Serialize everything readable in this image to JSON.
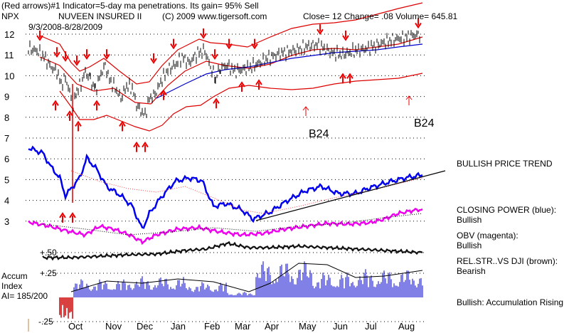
{
  "header": {
    "indicator_text": "(Red arrows)#1 Indicator=5-day ma penetrations. Its gain= 95% Sell",
    "ticker": "NPX",
    "fund_name": "NUVEEN INSURED II",
    "copyright": "(C) 2009 www.tigersoft.com",
    "close_text": "Close=  12  Change= .08 Volume= 645.81",
    "date_range": "9/3/2008-8/28/2009"
  },
  "annotations": {
    "b24_first": "B24",
    "b24_second": "B24",
    "trend_label": "BULLISH PRICE TREND",
    "closing_power_label": "CLOSING POWER (blue):",
    "closing_power_value": "Bullish",
    "obv_label": "OBV (magenta):",
    "obv_value": "Bullish",
    "relstr_label": "REL.STR..VS DJI (brown):",
    "relstr_value": "Bearish",
    "accum_summary": "Bullish: Accumulation Rising",
    "accum_title_1": "Accum",
    "accum_title_2": "Index",
    "accum_ai": "AI= 185/200"
  },
  "colors": {
    "price_bars": "#000000",
    "bands": "#dd0000",
    "ma_blue": "#0000cc",
    "closing_power": "#0000ee",
    "obv": "#ee00ee",
    "rel_strength": "#111111",
    "accum_bars": "#0000cc",
    "accum_negative": "#cc0000",
    "arrows": "#ee0000"
  },
  "chart_data": {
    "type": "line",
    "title": "NUVEEN INSURED II",
    "ylabel": "NPX",
    "x_ticks": [
      "Oct",
      "Nov",
      "Dec",
      "Jan",
      "Feb",
      "Mar",
      "Apr",
      "May",
      "Jun",
      "Jul",
      "Aug"
    ],
    "y_ticks": [
      "12",
      "11",
      "10",
      "9",
      "8",
      "7",
      "6",
      "5",
      "4",
      "3"
    ],
    "ylim": [
      2.5,
      12.5
    ],
    "accum_ticks": [
      "+.50",
      "+.25",
      "-.25"
    ],
    "accum_ylim": [
      -0.3,
      0.55
    ],
    "price": [
      {
        "x": 40,
        "y": 11.3
      },
      {
        "x": 52,
        "y": 11.2
      },
      {
        "x": 62,
        "y": 10.9
      },
      {
        "x": 72,
        "y": 10.4
      },
      {
        "x": 80,
        "y": 10.2
      },
      {
        "x": 86,
        "y": 9.6
      },
      {
        "x": 92,
        "y": 9.9
      },
      {
        "x": 98,
        "y": 9.2
      },
      {
        "x": 103,
        "y": 8.5
      },
      {
        "x": 108,
        "y": 9.3
      },
      {
        "x": 114,
        "y": 9.6
      },
      {
        "x": 120,
        "y": 10.2
      },
      {
        "x": 127,
        "y": 9.8
      },
      {
        "x": 134,
        "y": 9.3
      },
      {
        "x": 142,
        "y": 10.1
      },
      {
        "x": 148,
        "y": 10.5
      },
      {
        "x": 154,
        "y": 9.8
      },
      {
        "x": 162,
        "y": 9.4
      },
      {
        "x": 170,
        "y": 8.9
      },
      {
        "x": 178,
        "y": 9.5
      },
      {
        "x": 186,
        "y": 9.4
      },
      {
        "x": 192,
        "y": 8.6
      },
      {
        "x": 198,
        "y": 8.3
      },
      {
        "x": 204,
        "y": 8.1
      },
      {
        "x": 210,
        "y": 8.9
      },
      {
        "x": 218,
        "y": 9.1
      },
      {
        "x": 226,
        "y": 9.7
      },
      {
        "x": 236,
        "y": 10.3
      },
      {
        "x": 246,
        "y": 10.5
      },
      {
        "x": 256,
        "y": 10.9
      },
      {
        "x": 266,
        "y": 10.6
      },
      {
        "x": 278,
        "y": 11.1
      },
      {
        "x": 288,
        "y": 11.2
      },
      {
        "x": 296,
        "y": 10.4
      },
      {
        "x": 303,
        "y": 9.9
      },
      {
        "x": 310,
        "y": 10.4
      },
      {
        "x": 320,
        "y": 10.5
      },
      {
        "x": 330,
        "y": 10.2
      },
      {
        "x": 340,
        "y": 10.3
      },
      {
        "x": 352,
        "y": 10.4
      },
      {
        "x": 364,
        "y": 10.6
      },
      {
        "x": 380,
        "y": 10.9
      },
      {
        "x": 396,
        "y": 11.1
      },
      {
        "x": 412,
        "y": 11.2
      },
      {
        "x": 430,
        "y": 11.4
      },
      {
        "x": 446,
        "y": 11.5
      },
      {
        "x": 456,
        "y": 11.3
      },
      {
        "x": 468,
        "y": 11.1
      },
      {
        "x": 480,
        "y": 11.0
      },
      {
        "x": 490,
        "y": 11.1
      },
      {
        "x": 500,
        "y": 11.2
      },
      {
        "x": 516,
        "y": 11.3
      },
      {
        "x": 532,
        "y": 11.5
      },
      {
        "x": 548,
        "y": 11.7
      },
      {
        "x": 562,
        "y": 11.8
      },
      {
        "x": 576,
        "y": 11.9
      },
      {
        "x": 592,
        "y": 12.0
      }
    ],
    "down_arrows": [
      {
        "x": 56,
        "y": 11.9
      },
      {
        "x": 80,
        "y": 11.1
      },
      {
        "x": 92,
        "y": 10.9
      },
      {
        "x": 108,
        "y": 10.7
      },
      {
        "x": 122,
        "y": 11.0
      },
      {
        "x": 150,
        "y": 11.0
      },
      {
        "x": 216,
        "y": 10.8
      },
      {
        "x": 244,
        "y": 11.5
      },
      {
        "x": 286,
        "y": 12.0
      },
      {
        "x": 302,
        "y": 11.0
      },
      {
        "x": 322,
        "y": 11.5
      },
      {
        "x": 358,
        "y": 11.5
      },
      {
        "x": 450,
        "y": 12.2
      },
      {
        "x": 486,
        "y": 11.9
      },
      {
        "x": 588,
        "y": 12.5
      }
    ],
    "up_arrows": [
      {
        "x": 78,
        "y": 8.6
      },
      {
        "x": 98,
        "y": 8.1
      },
      {
        "x": 110,
        "y": 7.6
      },
      {
        "x": 136,
        "y": 8.6
      },
      {
        "x": 172,
        "y": 7.6
      },
      {
        "x": 192,
        "y": 6.6
      },
      {
        "x": 204,
        "y": 6.6
      },
      {
        "x": 230,
        "y": 9.1
      },
      {
        "x": 304,
        "y": 8.7
      },
      {
        "x": 340,
        "y": 9.5
      },
      {
        "x": 364,
        "y": 9.6
      },
      {
        "x": 482,
        "y": 9.9
      },
      {
        "x": 492,
        "y": 9.9
      },
      {
        "x": 88,
        "y": 3.2
      },
      {
        "x": 102,
        "y": 3.2
      }
    ]
  }
}
